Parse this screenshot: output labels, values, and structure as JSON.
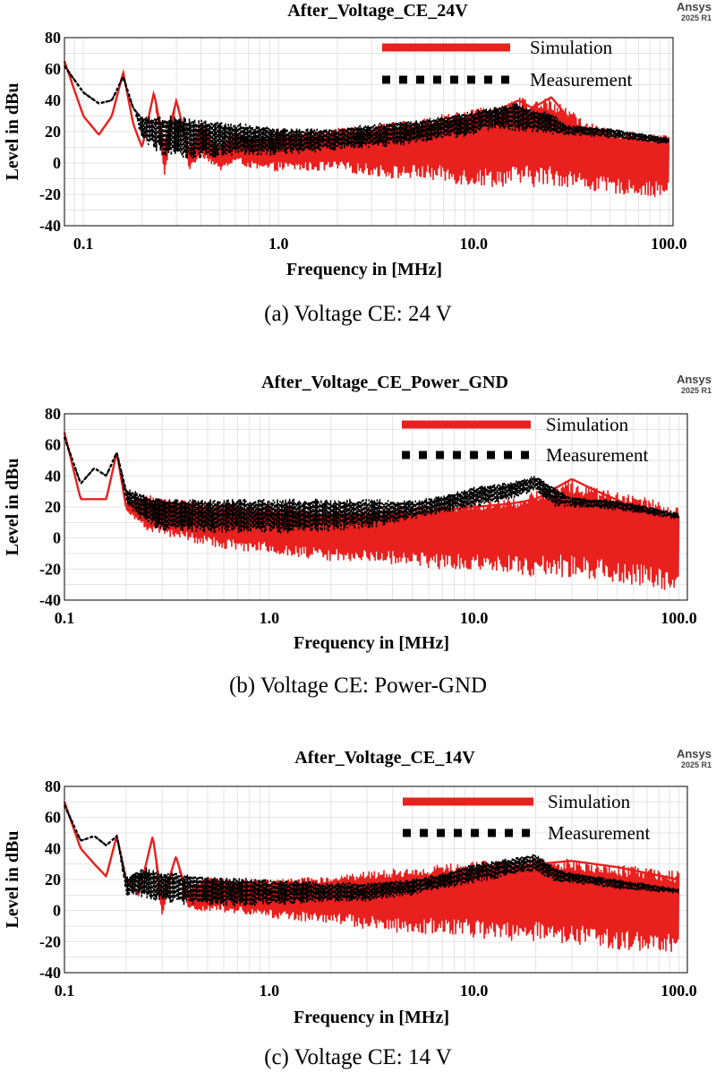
{
  "chart_data": [
    {
      "type": "line",
      "title": "After_Voltage_CE_24V",
      "brand": "Ansys",
      "brand_sub": "2025 R1",
      "caption": "(a) Voltage CE: 24 V",
      "xlabel": "Frequency in [MHz]",
      "ylabel": "Level in dBu",
      "xscale": "log",
      "xlim": [
        0.08,
        105
      ],
      "ylim": [
        -40,
        80
      ],
      "x_ticks": [
        "0.1",
        "1.0",
        "10.0",
        "100.0"
      ],
      "y_ticks": [
        "80",
        "60",
        "40",
        "20",
        "0",
        "-20",
        "-40"
      ],
      "grid": true,
      "legend_position": "top-right",
      "series": [
        {
          "name": "Simulation",
          "color": "#e8201e",
          "style": "solid",
          "x": [
            0.08,
            0.1,
            0.12,
            0.14,
            0.16,
            0.18,
            0.2,
            0.23,
            0.26,
            0.3,
            0.35,
            0.4,
            0.5,
            0.6,
            0.8,
            1.0,
            1.5,
            2,
            3,
            4,
            5,
            7,
            10,
            14,
            17,
            20,
            25,
            30,
            40,
            60,
            100
          ],
          "values": [
            65,
            30,
            18,
            30,
            58,
            25,
            10,
            45,
            10,
            40,
            5,
            25,
            0,
            15,
            0,
            12,
            5,
            10,
            15,
            18,
            20,
            25,
            30,
            35,
            40,
            35,
            42,
            30,
            10,
            0,
            -5
          ],
          "envelope_upper": [
            65,
            30,
            18,
            30,
            58,
            25,
            10,
            45,
            10,
            40,
            8,
            25,
            10,
            20,
            15,
            20,
            20,
            22,
            24,
            26,
            28,
            32,
            35,
            38,
            42,
            40,
            42,
            35,
            25,
            20,
            18
          ],
          "envelope_lower": [
            65,
            30,
            18,
            30,
            58,
            25,
            10,
            45,
            -10,
            40,
            -5,
            5,
            -5,
            0,
            -5,
            -5,
            -5,
            -5,
            -8,
            -10,
            -10,
            -12,
            -15,
            -15,
            -15,
            -15,
            -15,
            -15,
            -18,
            -20,
            -22
          ]
        },
        {
          "name": "Measurement",
          "color": "#000000",
          "style": "dashed",
          "x": [
            0.08,
            0.1,
            0.12,
            0.14,
            0.16,
            0.18,
            0.2,
            0.25,
            0.3,
            0.4,
            0.5,
            0.7,
            1.0,
            2,
            3,
            5,
            7,
            10,
            13,
            17,
            20,
            25,
            30,
            50,
            100
          ],
          "values": [
            62,
            45,
            38,
            40,
            55,
            35,
            28,
            25,
            22,
            20,
            18,
            15,
            15,
            15,
            18,
            20,
            24,
            28,
            32,
            36,
            30,
            28,
            22,
            20,
            14
          ],
          "envelope_upper": [
            62,
            45,
            38,
            40,
            55,
            35,
            30,
            30,
            30,
            28,
            26,
            25,
            22,
            22,
            25,
            27,
            30,
            33,
            36,
            38,
            34,
            32,
            24,
            22,
            16
          ],
          "envelope_lower": [
            62,
            45,
            38,
            40,
            55,
            35,
            15,
            5,
            2,
            3,
            3,
            5,
            5,
            8,
            10,
            12,
            15,
            18,
            22,
            20,
            20,
            18,
            18,
            16,
            12
          ]
        }
      ]
    },
    {
      "type": "line",
      "title": "After_Voltage_CE_Power_GND",
      "brand": "Ansys",
      "brand_sub": "2025 R1",
      "caption": "(b) Voltage CE: Power-GND",
      "xlabel": "Frequency in [MHz]",
      "ylabel": "Level in dBu",
      "xscale": "log",
      "xlim": [
        0.1,
        110
      ],
      "ylim": [
        -40,
        80
      ],
      "x_ticks": [
        "0.1",
        "1.0",
        "10.0",
        "100.0"
      ],
      "y_ticks": [
        "80",
        "60",
        "40",
        "20",
        "0",
        "-20",
        "-40"
      ],
      "grid": true,
      "legend_position": "top-right",
      "series": [
        {
          "name": "Simulation",
          "color": "#e8201e",
          "style": "solid",
          "x": [
            0.1,
            0.12,
            0.14,
            0.16,
            0.18,
            0.2,
            0.25,
            0.3,
            0.4,
            0.5,
            0.7,
            1.0,
            2,
            3,
            5,
            7,
            10,
            15,
            20,
            30,
            40,
            60,
            100
          ],
          "values": [
            68,
            25,
            25,
            25,
            55,
            20,
            15,
            10,
            8,
            5,
            5,
            5,
            8,
            10,
            15,
            18,
            20,
            22,
            25,
            38,
            30,
            20,
            10
          ],
          "envelope_upper": [
            68,
            25,
            25,
            25,
            55,
            22,
            28,
            25,
            25,
            22,
            22,
            20,
            18,
            18,
            20,
            22,
            24,
            25,
            30,
            38,
            32,
            28,
            20
          ],
          "envelope_lower": [
            68,
            25,
            25,
            25,
            55,
            18,
            5,
            2,
            -2,
            -5,
            -8,
            -10,
            -15,
            -15,
            -18,
            -20,
            -20,
            -22,
            -25,
            -25,
            -28,
            -30,
            -35
          ]
        },
        {
          "name": "Measurement",
          "color": "#000000",
          "style": "dashed",
          "x": [
            0.1,
            0.12,
            0.14,
            0.16,
            0.18,
            0.2,
            0.25,
            0.3,
            0.5,
            1.0,
            2,
            3,
            5,
            7,
            10,
            15,
            20,
            25,
            30,
            50,
            100
          ],
          "values": [
            65,
            35,
            45,
            40,
            55,
            30,
            22,
            18,
            15,
            15,
            15,
            15,
            18,
            22,
            28,
            33,
            38,
            30,
            25,
            22,
            14
          ],
          "envelope_upper": [
            65,
            35,
            45,
            40,
            55,
            32,
            28,
            25,
            25,
            25,
            25,
            25,
            24,
            27,
            33,
            36,
            40,
            32,
            26,
            24,
            16
          ],
          "envelope_lower": [
            65,
            35,
            45,
            40,
            55,
            22,
            8,
            5,
            3,
            3,
            4,
            6,
            12,
            16,
            20,
            25,
            30,
            20,
            20,
            18,
            12
          ]
        }
      ]
    },
    {
      "type": "line",
      "title": "After_Voltage_CE_14V",
      "brand": "Ansys",
      "brand_sub": "2025 R1",
      "caption": "(c) Voltage CE: 14 V",
      "xlabel": "Frequency in [MHz]",
      "ylabel": "Level in dBu",
      "xscale": "log",
      "xlim": [
        0.1,
        110
      ],
      "ylim": [
        -40,
        80
      ],
      "x_ticks": [
        "0.1",
        "1.0",
        "10.0",
        "100.0"
      ],
      "y_ticks": [
        "80",
        "60",
        "40",
        "20",
        "0",
        "-20",
        "-40"
      ],
      "grid": true,
      "legend_position": "top-right",
      "series": [
        {
          "name": "Simulation",
          "color": "#e8201e",
          "style": "solid",
          "x": [
            0.1,
            0.12,
            0.14,
            0.16,
            0.18,
            0.2,
            0.23,
            0.27,
            0.3,
            0.35,
            0.4,
            0.5,
            0.7,
            1.0,
            2,
            3,
            5,
            7,
            10,
            15,
            20,
            30,
            50,
            100
          ],
          "values": [
            70,
            40,
            30,
            22,
            48,
            20,
            10,
            48,
            5,
            35,
            10,
            20,
            10,
            10,
            12,
            15,
            18,
            22,
            25,
            28,
            30,
            32,
            28,
            20
          ],
          "envelope_upper": [
            70,
            40,
            30,
            22,
            48,
            20,
            10,
            48,
            5,
            35,
            12,
            22,
            20,
            20,
            22,
            25,
            28,
            30,
            32,
            33,
            34,
            33,
            30,
            25
          ],
          "envelope_lower": [
            70,
            40,
            30,
            22,
            48,
            20,
            10,
            48,
            -5,
            35,
            0,
            0,
            -2,
            -5,
            -8,
            -12,
            -15,
            -15,
            -18,
            -20,
            -20,
            -22,
            -25,
            -28
          ]
        },
        {
          "name": "Measurement",
          "color": "#000000",
          "style": "dashed",
          "x": [
            0.1,
            0.12,
            0.14,
            0.16,
            0.18,
            0.2,
            0.25,
            0.3,
            0.5,
            1.0,
            2,
            3,
            5,
            7,
            10,
            15,
            20,
            25,
            30,
            50,
            100
          ],
          "values": [
            68,
            45,
            48,
            42,
            48,
            20,
            22,
            20,
            15,
            12,
            12,
            12,
            15,
            20,
            25,
            30,
            33,
            25,
            22,
            18,
            13
          ],
          "envelope_upper": [
            68,
            45,
            48,
            42,
            48,
            22,
            28,
            25,
            22,
            20,
            18,
            18,
            20,
            24,
            30,
            34,
            36,
            28,
            24,
            20,
            14
          ],
          "envelope_lower": [
            68,
            45,
            48,
            42,
            48,
            10,
            8,
            5,
            3,
            3,
            5,
            6,
            10,
            14,
            18,
            22,
            25,
            18,
            18,
            14,
            11
          ]
        }
      ]
    }
  ]
}
